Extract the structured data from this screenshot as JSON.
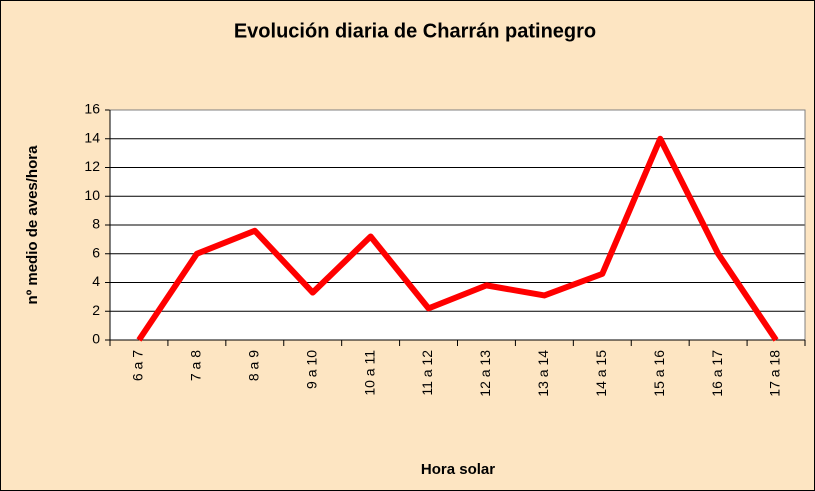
{
  "chart_data": {
    "type": "line",
    "title": "Evolución diaria de Charrán patinegro",
    "x_label": "Hora solar",
    "y_label": "nº medio de aves/hora",
    "categories": [
      "6 a 7",
      "7 a 8",
      "8 a 9",
      "9 a 10",
      "10 a 11",
      "11 a 12",
      "12 a 13",
      "13 a 14",
      "14 a 15",
      "15 a 16",
      "16 a 17",
      "17 a 18"
    ],
    "series": [
      {
        "name": "Charrán patinegro",
        "color": "#ff0000",
        "values": [
          0,
          6,
          7.6,
          3.3,
          7.2,
          2.2,
          3.8,
          3.1,
          4.6,
          14,
          6,
          0
        ]
      }
    ],
    "ylim": [
      0,
      16
    ],
    "yticks": [
      0,
      2,
      4,
      6,
      8,
      10,
      12,
      14,
      16
    ],
    "grid": true,
    "legend": false
  }
}
